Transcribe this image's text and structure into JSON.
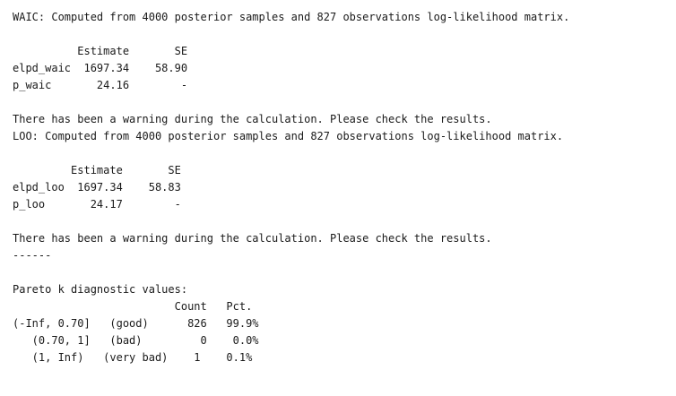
{
  "output": {
    "lines": [
      "WAIC: Computed from 4000 posterior samples and 827 observations log-likelihood matrix.",
      "",
      "          Estimate       SE",
      "elpd_waic  1697.34    58.90",
      "p_waic       24.16        -",
      "",
      "There has been a warning during the calculation. Please check the results.",
      "LOO: Computed from 4000 posterior samples and 827 observations log-likelihood matrix.",
      "",
      "         Estimate       SE",
      "elpd_loo  1697.34    58.83",
      "p_loo       24.17        -",
      "",
      "There has been a warning during the calculation. Please check the results.",
      "------",
      "",
      "Pareto k diagnostic values:",
      "                         Count   Pct.",
      "(-Inf, 0.70]   (good)      826   99.9%",
      "   (0.70, 1]   (bad)         0    0.0%",
      "   (1, Inf)   (very bad)    1    0.1%"
    ]
  }
}
